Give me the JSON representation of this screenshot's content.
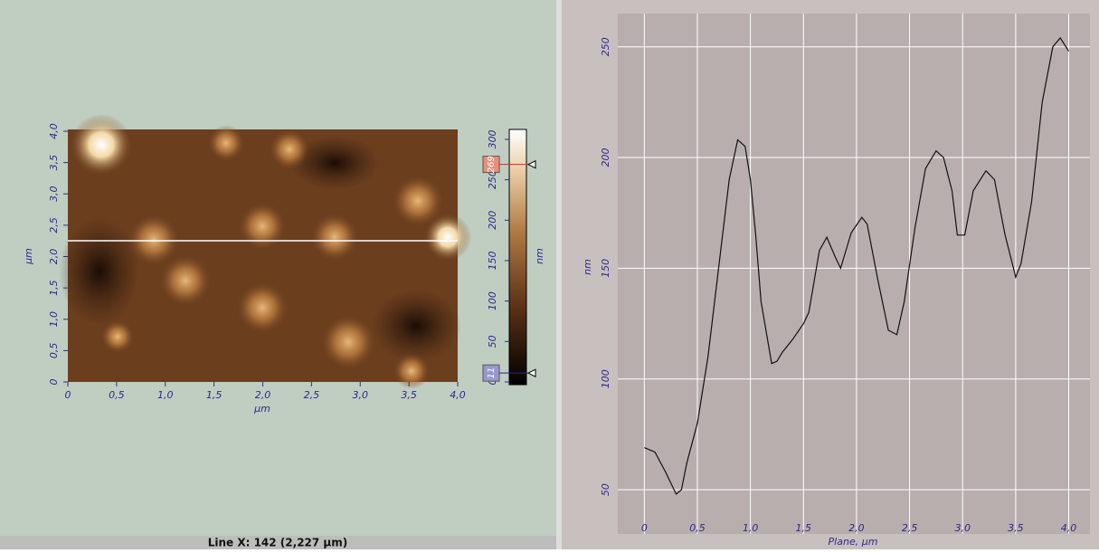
{
  "status_bar": "Line X: 142 (2,227 µm)",
  "chart_data": [
    {
      "type": "image",
      "xlabel": "µm",
      "ylabel": "µm",
      "xlim": [
        0,
        4
      ],
      "ylim": [
        0,
        4
      ],
      "xticks": [
        0,
        {
          "value": 0.5,
          "label": "0,5"
        },
        {
          "value": 1,
          "label": "1,0"
        },
        {
          "value": 1.5,
          "label": "1,5"
        },
        {
          "value": 2,
          "label": "2,0"
        },
        {
          "value": 2.5,
          "label": "2,5"
        },
        {
          "value": 3,
          "label": "3,0"
        },
        {
          "value": 3.5,
          "label": "3,5"
        },
        {
          "value": 4,
          "label": "4,0"
        }
      ],
      "yticks": [
        0,
        {
          "value": 0.5,
          "label": "0,5"
        },
        {
          "value": 1,
          "label": "1,0"
        },
        {
          "value": 1.5,
          "label": "1,5"
        },
        {
          "value": 2,
          "label": "2,0"
        },
        {
          "value": 2.5,
          "label": "2,5"
        },
        {
          "value": 3,
          "label": "3,0"
        },
        {
          "value": 3.5,
          "label": "3,5"
        },
        {
          "value": 4,
          "label": "4,0"
        }
      ],
      "colorbar_label": "nm",
      "colorbar_lim": [
        0,
        310
      ],
      "colorbar_ticks": [
        0,
        50,
        100,
        150,
        200,
        250,
        300
      ],
      "markers": [
        269,
        11
      ]
    },
    {
      "type": "line",
      "xlabel": "Plane, µm",
      "ylabel": "nm",
      "xlim": [
        -0.25,
        4.2
      ],
      "ylim": [
        30,
        265
      ],
      "xticks": [
        0,
        {
          "value": 0.5,
          "label": "0,5"
        },
        {
          "value": 1,
          "label": "1,0"
        },
        {
          "value": 1.5,
          "label": "1,5"
        },
        {
          "value": 2,
          "label": "2,0"
        },
        {
          "value": 2.5,
          "label": "2,5"
        },
        {
          "value": 3,
          "label": "3,0"
        },
        {
          "value": 3.5,
          "label": "3,5"
        },
        {
          "value": 4,
          "label": "4,0"
        }
      ],
      "yticks": [
        50,
        100,
        150,
        200,
        250
      ],
      "grid": true,
      "color": "#111111",
      "x": [
        0,
        0.1,
        0.2,
        0.3,
        0.35,
        0.4,
        0.5,
        0.6,
        0.7,
        0.8,
        0.88,
        0.95,
        1.0,
        1.05,
        1.1,
        1.2,
        1.25,
        1.3,
        1.4,
        1.5,
        1.55,
        1.65,
        1.72,
        1.8,
        1.85,
        1.95,
        2.05,
        2.1,
        2.2,
        2.3,
        2.38,
        2.45,
        2.55,
        2.65,
        2.75,
        2.82,
        2.9,
        2.95,
        3.02,
        3.1,
        3.22,
        3.3,
        3.4,
        3.5,
        3.55,
        3.65,
        3.75,
        3.85,
        3.92,
        4.0
      ],
      "values": [
        69,
        67,
        58,
        48,
        50,
        62,
        80,
        110,
        150,
        190,
        208,
        205,
        190,
        165,
        135,
        107,
        108,
        112,
        118,
        125,
        130,
        158,
        164,
        155,
        150,
        166,
        173,
        170,
        145,
        122,
        120,
        135,
        168,
        195,
        203,
        200,
        185,
        165,
        165,
        185,
        194,
        190,
        165,
        146,
        152,
        180,
        225,
        250,
        254,
        248
      ]
    }
  ]
}
